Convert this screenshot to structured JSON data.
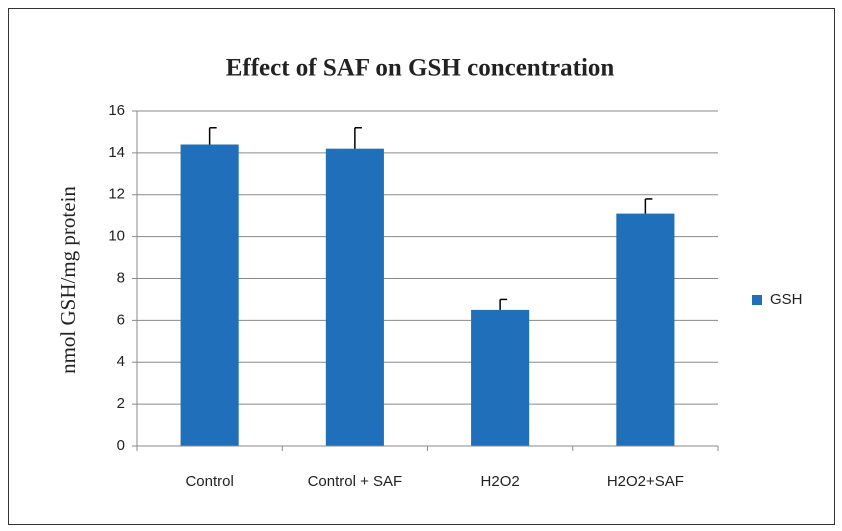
{
  "chart_data": {
    "type": "bar",
    "title": "Effect of SAF on GSH concentration",
    "y_label": "nmol GSH/mg protein",
    "categories": [
      "Control",
      "Control + SAF",
      "H2O2",
      "H2O2+SAF"
    ],
    "series": [
      {
        "name": "GSH",
        "color": "#1f6fba",
        "values": [
          14.4,
          14.2,
          6.5,
          11.1
        ],
        "errors": [
          0.8,
          1.0,
          0.5,
          0.7
        ]
      }
    ],
    "ylim": [
      0,
      16
    ],
    "yticks": [
      0,
      2,
      4,
      6,
      8,
      10,
      12,
      14,
      16
    ],
    "grid": true,
    "legend": "right",
    "error_bars": "upper"
  }
}
